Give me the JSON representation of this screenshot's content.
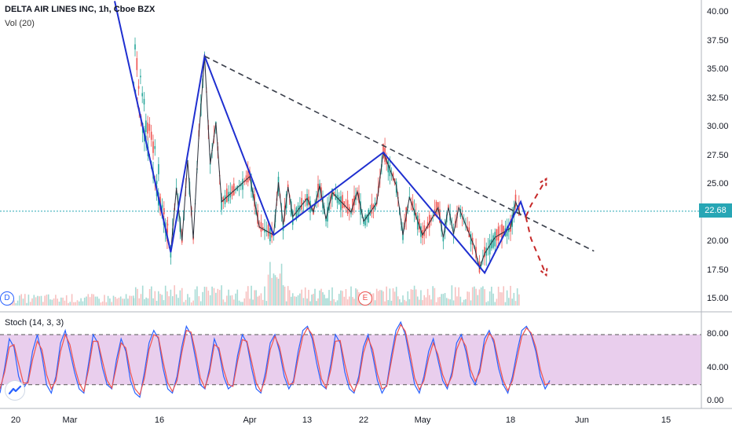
{
  "header": {
    "symbol_line": "DELTA AIR LINES INC, 1h, Cboe BZX",
    "volume_line": "Vol (20)",
    "stoch_line": "Stoch (14, 3, 3)"
  },
  "price_label": "22.68",
  "badges": {
    "dividend": "D",
    "earnings": "E"
  },
  "icons": {
    "logo": "tradingview-logo-icon"
  },
  "colors": {
    "pattern_line": "#1f2fd0",
    "trendline": "#3a3f4b",
    "projection": "#c62828",
    "up_candle": "#26a69a",
    "down_candle": "#ef5350",
    "stoch_band": "#e1bee7",
    "stoch_k": "#2962ff",
    "stoch_d": "#ef5350",
    "price_line": "#27a6b5"
  },
  "chart_data": [
    {
      "type": "line",
      "title": "DELTA AIR LINES INC, 1h, Cboe BZX",
      "ylabel": "",
      "ylim": [
        14.2,
        40.8
      ],
      "grid": false,
      "last_price": 22.68,
      "y_ticks": [
        "40.00",
        "37.50",
        "35.00",
        "32.50",
        "30.00",
        "27.50",
        "25.00",
        "22.50",
        "20.00",
        "17.50",
        "15.00"
      ],
      "x_ticks": [
        "20",
        "Mar",
        "16",
        "Apr",
        "13",
        "22",
        "May",
        "18",
        "Jun",
        "15"
      ],
      "series": [
        {
          "role": "pattern-zigzag",
          "points": [
            [
              "Mar 9",
              41.0
            ],
            [
              "Mar 18",
              19.1
            ],
            [
              "Mar 24",
              36.2
            ],
            [
              "Apr 6",
              20.6
            ],
            [
              "Apr 25",
              27.8
            ],
            [
              "May 13",
              17.3
            ],
            [
              "May 20",
              23.5
            ],
            [
              "May 21",
              22.2
            ]
          ]
        },
        {
          "role": "swing-path",
          "points": [
            [
              "Mar 18",
              19.1
            ],
            [
              "Mar 19",
              24.7
            ],
            [
              "Mar 20",
              20.1
            ],
            [
              "Mar 21",
              27.1
            ],
            [
              "Mar 22",
              20.3
            ],
            [
              "Mar 23",
              29.4
            ],
            [
              "Mar 24",
              36.2
            ],
            [
              "Mar 25",
              26.8
            ],
            [
              "Mar 26",
              30.4
            ],
            [
              "Mar 27",
              23.5
            ],
            [
              "Apr 1",
              25.7
            ],
            [
              "Apr 3",
              21.3
            ],
            [
              "Apr 6",
              20.6
            ],
            [
              "Apr 7",
              25.2
            ],
            [
              "Apr 8",
              21.5
            ],
            [
              "Apr 9",
              24.8
            ],
            [
              "Apr 10",
              22.2
            ],
            [
              "Apr 13",
              23.8
            ],
            [
              "Apr 14",
              22.6
            ],
            [
              "Apr 15",
              24.9
            ],
            [
              "Apr 16",
              22.0
            ],
            [
              "Apr 17",
              24.3
            ],
            [
              "Apr 20",
              22.6
            ],
            [
              "Apr 21",
              24.4
            ],
            [
              "Apr 22",
              21.8
            ],
            [
              "Apr 24",
              23.4
            ],
            [
              "Apr 25",
              27.8
            ],
            [
              "Apr 27",
              24.9
            ],
            [
              "Apr 28",
              20.6
            ],
            [
              "Apr 29",
              23.9
            ],
            [
              "May 1",
              20.6
            ],
            [
              "May 4",
              23.0
            ],
            [
              "May 5",
              20.4
            ],
            [
              "May 6",
              23.0
            ],
            [
              "May 7",
              20.7
            ],
            [
              "May 8",
              23.0
            ],
            [
              "May 11",
              19.6
            ],
            [
              "May 12",
              17.7
            ],
            [
              "May 13",
              19.0
            ],
            [
              "May 15",
              20.4
            ],
            [
              "May 18",
              21.2
            ],
            [
              "May 19",
              23.5
            ],
            [
              "May 20",
              22.3
            ]
          ]
        },
        {
          "role": "descending-trendline",
          "points": [
            [
              "Mar 24",
              36.2
            ],
            [
              "Jun 3",
              19.2
            ]
          ]
        },
        {
          "role": "projection-up",
          "points": [
            [
              "May 21",
              22.2
            ],
            [
              "May 22",
              23.2
            ],
            [
              "May 25",
              25.5
            ]
          ]
        },
        {
          "role": "projection-down",
          "points": [
            [
              "May 21",
              22.2
            ],
            [
              "May 22",
              20.3
            ],
            [
              "May 25",
              17.1
            ]
          ]
        }
      ]
    },
    {
      "type": "line",
      "title": "Stoch (14, 3, 3)",
      "ylim": [
        -5,
        103
      ],
      "y_ticks": [
        "80.00",
        "40.00",
        "0.00"
      ],
      "band": [
        20,
        80
      ],
      "series": [
        {
          "name": "%K",
          "values": [
            10,
            40,
            75,
            65,
            30,
            15,
            25,
            60,
            80,
            55,
            20,
            10,
            30,
            70,
            85,
            60,
            35,
            15,
            10,
            45,
            80,
            70,
            40,
            20,
            15,
            50,
            75,
            60,
            25,
            10,
            5,
            35,
            70,
            85,
            75,
            40,
            15,
            10,
            30,
            65,
            90,
            80,
            50,
            20,
            15,
            40,
            75,
            60,
            30,
            15,
            20,
            55,
            80,
            70,
            40,
            15,
            10,
            35,
            70,
            80,
            60,
            30,
            15,
            25,
            60,
            85,
            90,
            75,
            45,
            20,
            15,
            45,
            80,
            70,
            35,
            15,
            10,
            30,
            65,
            80,
            55,
            25,
            10,
            20,
            55,
            85,
            95,
            80,
            50,
            20,
            10,
            30,
            60,
            75,
            50,
            25,
            15,
            35,
            70,
            80,
            60,
            30,
            20,
            40,
            75,
            85,
            70,
            40,
            20,
            10,
            30,
            60,
            85,
            90,
            80,
            60,
            30,
            15,
            25
          ]
        },
        {
          "name": "%D",
          "values": [
            15,
            35,
            65,
            68,
            45,
            22,
            22,
            50,
            72,
            62,
            32,
            15,
            25,
            60,
            80,
            68,
            42,
            22,
            12,
            38,
            72,
            72,
            48,
            25,
            16,
            42,
            70,
            64,
            35,
            15,
            8,
            28,
            62,
            80,
            77,
            48,
            22,
            12,
            25,
            58,
            85,
            83,
            58,
            28,
            16,
            35,
            68,
            64,
            38,
            20,
            18,
            48,
            74,
            72,
            48,
            22,
            12,
            28,
            62,
            78,
            65,
            38,
            20,
            22,
            52,
            78,
            88,
            80,
            55,
            27,
            16,
            38,
            72,
            73,
            45,
            22,
            12,
            25,
            58,
            76,
            62,
            33,
            15,
            18,
            48,
            78,
            92,
            84,
            58,
            28,
            14,
            25,
            52,
            70,
            56,
            32,
            18,
            30,
            62,
            76,
            66,
            38,
            24,
            35,
            67,
            82,
            74,
            48,
            25,
            13,
            25,
            52,
            78,
            88,
            82,
            65,
            38,
            20,
            22
          ]
        }
      ]
    }
  ]
}
